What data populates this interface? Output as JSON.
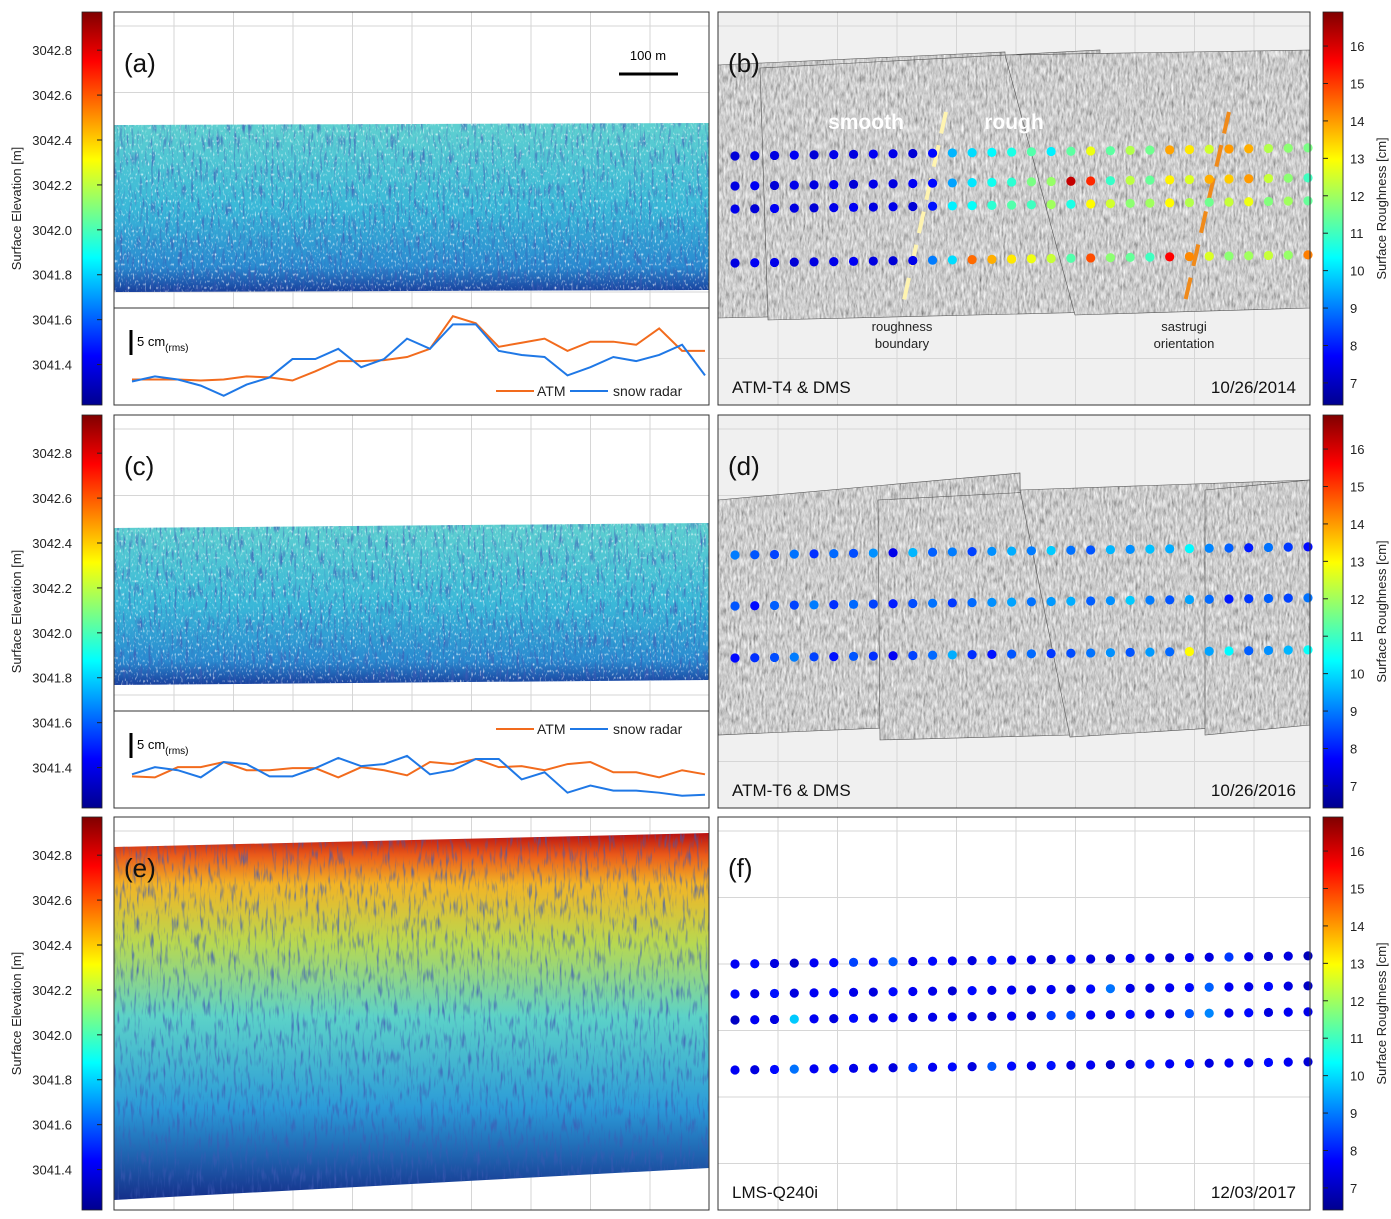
{
  "colorbars": {
    "elevation": {
      "label": "Surface Elevation [m]",
      "lim": [
        3041.22,
        3042.97
      ],
      "ticks": [
        3041.4,
        3041.6,
        3041.8,
        {
          "value": 3042,
          "label": "3042.0"
        },
        3042.2,
        3042.4,
        3042.6,
        3042.8
      ]
    },
    "roughness": {
      "label": "Surface Roughness [cm]",
      "lim": [
        6.41,
        16.91
      ],
      "ticks": [
        7,
        8,
        9,
        10,
        11,
        12,
        13,
        14,
        15,
        16
      ]
    }
  },
  "chart_data": [
    {
      "type": "elevation-map",
      "label": "(a)",
      "scale_bar": "100 m",
      "profile": {
        "type": "line",
        "scale_bar": "5 cm",
        "scale_bar_sub": "(rms)",
        "ylim": [
          6,
          25
        ],
        "legend": "lower right",
        "series": [
          {
            "name": "ATM",
            "color": "#f26b1d",
            "values": [
              11,
              11,
              11,
              10.8,
              11,
              11.6,
              11.4,
              10.8,
              12.6,
              14.6,
              14.6,
              14.8,
              15.4,
              17,
              23.4,
              22,
              17.4,
              18.2,
              19,
              16.6,
              18.4,
              18.4,
              17.8,
              21,
              16.6,
              16.6
            ]
          },
          {
            "name": "snow radar",
            "color": "#1f78e6",
            "values": [
              10.6,
              11.6,
              11,
              9.8,
              7.8,
              10,
              11.4,
              15,
              15,
              17,
              13.4,
              15,
              19,
              17,
              21.8,
              21.8,
              16.6,
              15.8,
              15.4,
              11.8,
              13.4,
              15.4,
              14.6,
              15.8,
              17.8,
              11.8
            ]
          }
        ]
      }
    },
    {
      "type": "dot-map",
      "label": "(b)",
      "instrument": "ATM-T4 & DMS",
      "date": "10/26/2014",
      "region_labels": [
        "smooth",
        "rough"
      ],
      "line_labels": [
        [
          "roughness",
          "boundary"
        ],
        [
          "sastrugi",
          "orientation"
        ]
      ],
      "rows": [
        [
          7.3,
          7.5,
          7.4,
          7.6,
          7.3,
          7.5,
          7.4,
          7.6,
          7.5,
          7.3,
          7.8,
          9.6,
          10,
          10.3,
          10.6,
          11.2,
          10.2,
          11.3,
          12.8,
          11.3,
          12.2,
          11.5,
          13.9,
          13.2,
          12.5,
          14,
          13.8,
          12.2,
          11.8,
          11.6
        ],
        [
          7.4,
          7.6,
          7.3,
          7.5,
          7.4,
          7.6,
          7.3,
          7.5,
          7.4,
          7.6,
          7.8,
          9.4,
          10.1,
          10.5,
          10.8,
          11.6,
          11.9,
          16.2,
          15.2,
          10.9,
          12.3,
          11.4,
          13.1,
          12.6,
          13.8,
          13.5,
          14,
          12.4,
          11.8,
          11
        ],
        [
          7.5,
          7.3,
          7.6,
          7.4,
          7.3,
          7.5,
          7.6,
          7.4,
          7.5,
          7.3,
          7.9,
          10.2,
          10.4,
          10.8,
          11.2,
          11,
          12,
          10.6,
          13,
          12.5,
          11.8,
          12,
          13,
          12.2,
          11.5,
          12.4,
          12.8,
          11.7,
          12,
          11.4
        ],
        [
          7.4,
          7.6,
          7.5,
          7.3,
          7.4,
          7.5,
          7.6,
          7.4,
          7.3,
          7.5,
          9,
          10,
          14.5,
          13.8,
          13.2,
          12.8,
          12.4,
          11.2,
          14.8,
          11.8,
          11.4,
          11,
          15.6,
          14.2,
          12.6,
          11.8,
          12,
          12.4,
          11.9,
          14.3
        ]
      ]
    },
    {
      "type": "elevation-map",
      "label": "(c)",
      "profile": {
        "type": "line",
        "scale_bar": "5 cm",
        "scale_bar_sub": "(rms)",
        "ylim": [
          6,
          25
        ],
        "legend": "upper right",
        "series": [
          {
            "name": "ATM",
            "color": "#f26b1d",
            "values": [
              12.2,
              12,
              14,
              14,
              15,
              13.4,
              13.4,
              13.8,
              13.8,
              12,
              14,
              13.4,
              12.4,
              15,
              14.6,
              15.6,
              14,
              14.2,
              13.4,
              14.6,
              15,
              13,
              13,
              12,
              13.4,
              12.6
            ]
          },
          {
            "name": "snow radar",
            "color": "#1f78e6",
            "values": [
              12.6,
              14,
              13.4,
              12,
              15,
              14.6,
              12.2,
              12.2,
              13.8,
              15.8,
              14.2,
              14.6,
              16.2,
              12.6,
              13.4,
              15.6,
              15.6,
              11.6,
              13,
              9,
              10.4,
              9.4,
              9.4,
              9,
              8.4,
              8.6
            ]
          }
        ]
      }
    },
    {
      "type": "dot-map",
      "label": "(d)",
      "instrument": "ATM-T6 & DMS",
      "date": "10/26/2016",
      "rows": [
        [
          9,
          8.6,
          8.4,
          8.9,
          8.2,
          8.8,
          8.5,
          9.2,
          7.5,
          9.6,
          8.7,
          9,
          8.4,
          9.2,
          9.5,
          9,
          9.8,
          8.9,
          8.6,
          9.6,
          9.2,
          9.7,
          9.5,
          10.3,
          9.1,
          8.7,
          8,
          8.9,
          8.3,
          7.8
        ],
        [
          8.6,
          7.8,
          8.7,
          8.4,
          9,
          8.2,
          8.8,
          8.4,
          8,
          8.5,
          8.9,
          8.3,
          8.8,
          9.2,
          9.4,
          8.9,
          9.3,
          9.5,
          8.7,
          9.2,
          9.8,
          9,
          8.6,
          9.4,
          8.8,
          8,
          8.3,
          8.7,
          8.4,
          8.9
        ],
        [
          7.8,
          8.2,
          8.5,
          9,
          8.4,
          7.9,
          8.6,
          8.2,
          7.6,
          8.4,
          8.8,
          9.5,
          8.2,
          7.9,
          8.6,
          8.8,
          8.3,
          8.5,
          8.9,
          9.2,
          8.6,
          9.3,
          8.8,
          13,
          9.4,
          10.3,
          8.7,
          9.2,
          9.6,
          10.4
        ]
      ]
    },
    {
      "type": "elevation-map",
      "label": "(e)"
    },
    {
      "type": "dot-map",
      "label": "(f)",
      "instrument": "LMS-Q240i",
      "date": "12/03/2017",
      "rows": [
        [
          7.6,
          7.8,
          7.4,
          7.2,
          7.6,
          7.8,
          8.4,
          7.9,
          8.6,
          7.5,
          7.8,
          7.6,
          7.4,
          7.9,
          7.6,
          7.5,
          7.3,
          7.8,
          7.4,
          7.2,
          7.6,
          7.5,
          7.3,
          7.6,
          7.4,
          8.3,
          7.5,
          7.2,
          7.4,
          7
        ],
        [
          7.8,
          7.5,
          7.9,
          7.4,
          7.6,
          7.8,
          7.5,
          7.4,
          7.8,
          7.6,
          7.5,
          7.3,
          7.8,
          7.5,
          7.6,
          7.4,
          7.6,
          7.3,
          7.8,
          8.9,
          7.5,
          7.4,
          7.6,
          7.8,
          8.7,
          7.6,
          7.5,
          7.8,
          7.4,
          7.1
        ],
        [
          7.1,
          7.6,
          7.4,
          9.8,
          7.6,
          7.4,
          7.8,
          7.5,
          7.6,
          7.4,
          7.5,
          7.6,
          7.4,
          7.3,
          7.6,
          7.3,
          8.3,
          8.5,
          7.6,
          7.4,
          7.8,
          7.5,
          7.4,
          8.6,
          9.1,
          7.5,
          7.8,
          7.4,
          7.6,
          7.5
        ],
        [
          7.6,
          7.4,
          7.8,
          8.9,
          7.6,
          7.8,
          7.5,
          7.6,
          7.4,
          8.2,
          7.6,
          7.8,
          7.4,
          8.6,
          7.8,
          7.5,
          7.9,
          7.4,
          7.6,
          7.2,
          7.4,
          7.9,
          7.6,
          7.8,
          7.4,
          7.6,
          7.5,
          7.8,
          7.6,
          7.3
        ]
      ]
    }
  ]
}
